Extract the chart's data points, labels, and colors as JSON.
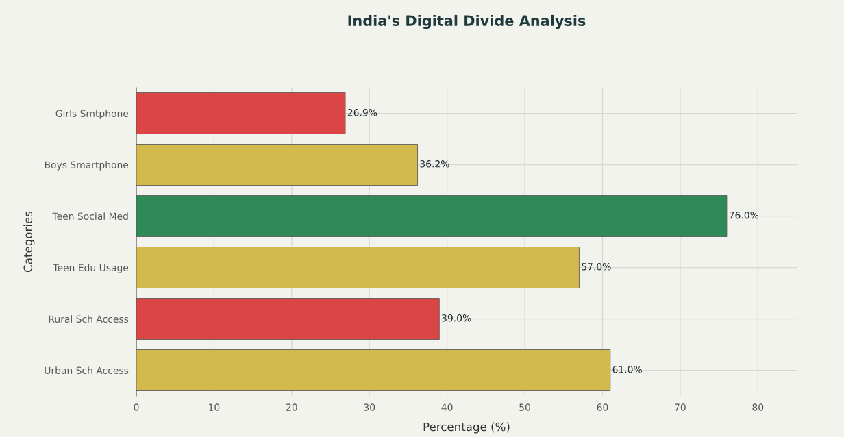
{
  "chart_data": {
    "type": "bar",
    "orientation": "horizontal",
    "title": "India's Digital Divide Analysis",
    "xlabel": "Percentage (%)",
    "ylabel": "Categories",
    "categories": [
      "Girls Smtphone",
      "Boys Smartphone",
      "Teen Social Med",
      "Teen Edu Usage",
      "Rural Sch Access",
      "Urban Sch Access"
    ],
    "values": [
      26.9,
      36.2,
      76.0,
      57.0,
      39.0,
      61.0
    ],
    "colors": [
      "#db4545",
      "#d2ba4c",
      "#2e8b57",
      "#d2ba4c",
      "#db4545",
      "#d2ba4c"
    ],
    "value_labels": [
      "26.9%",
      "36.2%",
      "76.0%",
      "57.0%",
      "39.0%",
      "61.0%"
    ],
    "xlim": [
      0,
      85
    ],
    "xticks": [
      0,
      10,
      20,
      30,
      40,
      50,
      60,
      70,
      80
    ],
    "grid": true
  }
}
